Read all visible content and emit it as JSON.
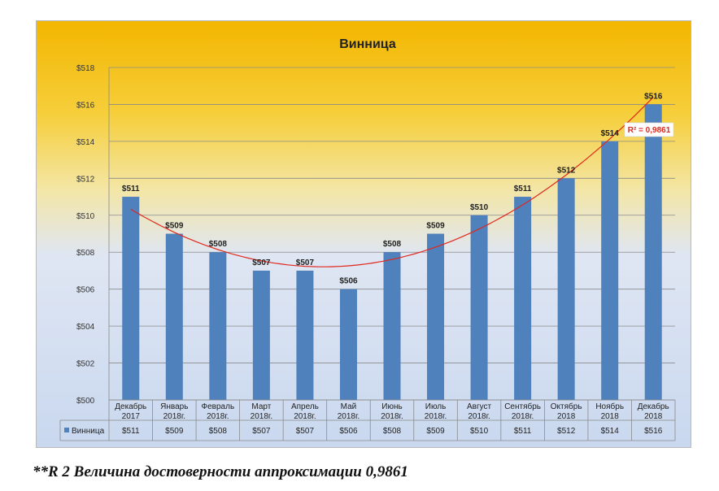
{
  "chart_data": {
    "type": "bar",
    "title": "Винница",
    "categories": [
      [
        "Декабрь",
        "2017"
      ],
      [
        "Январь",
        "2018г."
      ],
      [
        "Февраль",
        "2018г."
      ],
      [
        "Март",
        "2018г."
      ],
      [
        "Апрель",
        "2018г."
      ],
      [
        "Май",
        "2018г."
      ],
      [
        "Июнь",
        "2018г."
      ],
      [
        "Июль",
        "2018г."
      ],
      [
        "Август",
        "2018г."
      ],
      [
        "Сентябрь",
        "2018г."
      ],
      [
        "Октябрь",
        "2018"
      ],
      [
        "Ноябрь",
        "2018"
      ],
      [
        "Декабрь",
        "2018"
      ]
    ],
    "series": [
      {
        "name": "Винница",
        "values": [
          511,
          509,
          508,
          507,
          507,
          506,
          508,
          509,
          510,
          511,
          512,
          514,
          516
        ],
        "color": "#4f81bd"
      }
    ],
    "data_labels": [
      "$511",
      "$509",
      "$508",
      "$507",
      "$507",
      "$506",
      "$508",
      "$509",
      "$510",
      "$511",
      "$512",
      "$514",
      "$516"
    ],
    "ylim": [
      500,
      518
    ],
    "y_ticks": [
      500,
      502,
      504,
      506,
      508,
      510,
      512,
      514,
      516,
      518
    ],
    "y_tick_labels": [
      "$500",
      "$502",
      "$504",
      "$506",
      "$508",
      "$510",
      "$512",
      "$514",
      "$516",
      "$518"
    ],
    "grid": true,
    "legend": "data-table",
    "trendline": {
      "type": "polynomial",
      "color": "#e0281e",
      "r2_label": "R² = 0,9861"
    }
  },
  "footnote": "**R 2 Величина достоверности аппроксимации 0,9861"
}
